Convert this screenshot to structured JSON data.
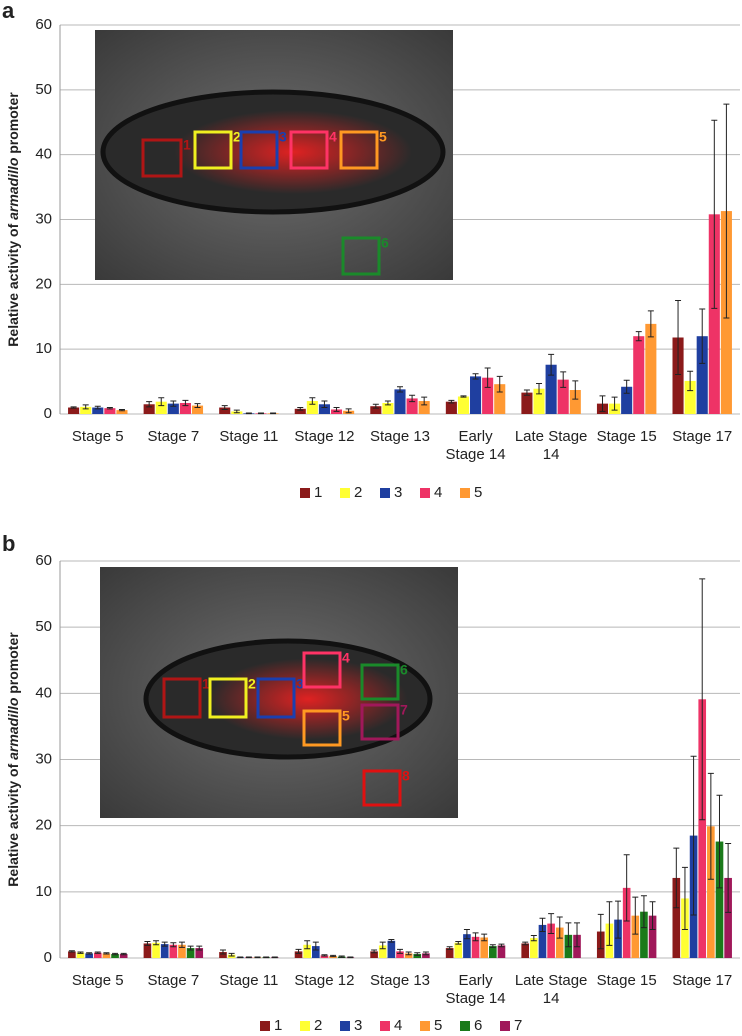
{
  "chart_data": [
    {
      "type": "bar",
      "panel_label": "a",
      "y_label": {
        "before": "Relative activity of ",
        "italic": "armadillo",
        "after": " promoter"
      },
      "categories": [
        "Stage 5",
        "Stage 7",
        "Stage 11",
        "Stage 12",
        "Stage 13",
        "Early Stage 14",
        "Late Stage 14",
        "Stage 15",
        "Stage 17"
      ],
      "series": [
        {
          "name": "1",
          "color": "#8b1a1a",
          "values": [
            1.0,
            1.5,
            1.0,
            0.8,
            1.2,
            1.9,
            3.3,
            1.6,
            11.8
          ],
          "errors": [
            0.1,
            0.4,
            0.3,
            0.2,
            0.3,
            0.2,
            0.4,
            1.2,
            5.7
          ]
        },
        {
          "name": "2",
          "color": "#ffff33",
          "values": [
            1.1,
            1.9,
            0.4,
            2.0,
            1.7,
            2.7,
            3.9,
            1.6,
            5.1
          ],
          "errors": [
            0.3,
            0.6,
            0.2,
            0.5,
            0.3,
            0.1,
            0.8,
            1.0,
            1.5
          ]
        },
        {
          "name": "3",
          "color": "#1f3fa0",
          "values": [
            1.0,
            1.6,
            0.1,
            1.5,
            3.8,
            5.8,
            7.6,
            4.2,
            12.0
          ],
          "errors": [
            0.2,
            0.4,
            0.05,
            0.5,
            0.4,
            0.4,
            1.6,
            1.0,
            4.2
          ]
        },
        {
          "name": "4",
          "color": "#ee3366",
          "values": [
            0.9,
            1.7,
            0.1,
            0.7,
            2.4,
            5.6,
            5.3,
            12.0,
            30.8
          ],
          "errors": [
            0.1,
            0.4,
            0.05,
            0.3,
            0.5,
            1.5,
            1.2,
            0.7,
            14.5
          ]
        },
        {
          "name": "5",
          "color": "#ff9933",
          "values": [
            0.6,
            1.3,
            0.1,
            0.5,
            2.0,
            4.6,
            3.7,
            13.9,
            31.3
          ],
          "errors": [
            0.1,
            0.3,
            0.05,
            0.3,
            0.6,
            1.2,
            1.4,
            2.0,
            16.5
          ]
        }
      ],
      "ylim": [
        0,
        60
      ],
      "yticks": [
        0,
        10,
        20,
        30,
        40,
        50,
        60
      ],
      "grid": true,
      "inset_labels": [
        "1",
        "2",
        "3",
        "4",
        "5",
        "6"
      ]
    },
    {
      "type": "bar",
      "panel_label": "b",
      "y_label": {
        "before": "Relative activity of ",
        "italic": "armadillo",
        "after": " promoter"
      },
      "categories": [
        "Stage 5",
        "Stage 7",
        "Stage 11",
        "Stage 12",
        "Stage 13",
        "Early Stage 14",
        "Late Stage 14",
        "Stage 15",
        "Stage 17"
      ],
      "series": [
        {
          "name": "1",
          "color": "#8b1a1a",
          "values": [
            1.0,
            2.2,
            0.9,
            1.0,
            1.0,
            1.5,
            2.2,
            4.0,
            12.1
          ],
          "errors": [
            0.1,
            0.3,
            0.3,
            0.3,
            0.2,
            0.2,
            0.2,
            2.6,
            4.5
          ]
        },
        {
          "name": "2",
          "color": "#ffff33",
          "values": [
            0.8,
            2.3,
            0.5,
            2.0,
            1.9,
            2.3,
            3.0,
            5.2,
            9.0
          ],
          "errors": [
            0.1,
            0.3,
            0.2,
            0.6,
            0.5,
            0.2,
            0.4,
            3.3,
            4.7
          ]
        },
        {
          "name": "3",
          "color": "#1f3fa0",
          "values": [
            0.7,
            2.1,
            0.1,
            1.8,
            2.6,
            3.6,
            5.0,
            5.8,
            18.5
          ],
          "errors": [
            0.1,
            0.3,
            0.05,
            0.6,
            0.2,
            0.7,
            1.0,
            2.8,
            12.0
          ]
        },
        {
          "name": "4",
          "color": "#ee3366",
          "values": [
            0.8,
            2.0,
            0.1,
            0.4,
            1.0,
            3.2,
            5.2,
            10.6,
            39.1
          ],
          "errors": [
            0.1,
            0.3,
            0.05,
            0.1,
            0.3,
            0.6,
            1.5,
            5.0,
            18.2
          ]
        },
        {
          "name": "5",
          "color": "#ff9933",
          "values": [
            0.7,
            2.0,
            0.1,
            0.3,
            0.7,
            3.1,
            4.6,
            6.4,
            19.9
          ],
          "errors": [
            0.1,
            0.4,
            0.05,
            0.1,
            0.2,
            0.5,
            1.6,
            2.8,
            8.0
          ]
        },
        {
          "name": "6",
          "color": "#1a7a1a",
          "values": [
            0.6,
            1.5,
            0.1,
            0.2,
            0.6,
            1.8,
            3.5,
            7.0,
            17.6
          ],
          "errors": [
            0.1,
            0.3,
            0.05,
            0.1,
            0.2,
            0.2,
            1.8,
            2.4,
            7.0
          ]
        },
        {
          "name": "7",
          "color": "#a0185a",
          "values": [
            0.6,
            1.5,
            0.1,
            0.1,
            0.7,
            1.9,
            3.5,
            6.4,
            12.1
          ],
          "errors": [
            0.1,
            0.3,
            0.05,
            0.05,
            0.2,
            0.2,
            1.8,
            2.1,
            5.2
          ]
        }
      ],
      "ylim": [
        0,
        60
      ],
      "yticks": [
        0,
        10,
        20,
        30,
        40,
        50,
        60
      ],
      "grid": true,
      "inset_labels": [
        "1",
        "2",
        "3",
        "4",
        "5",
        "6",
        "7",
        "8"
      ]
    }
  ]
}
